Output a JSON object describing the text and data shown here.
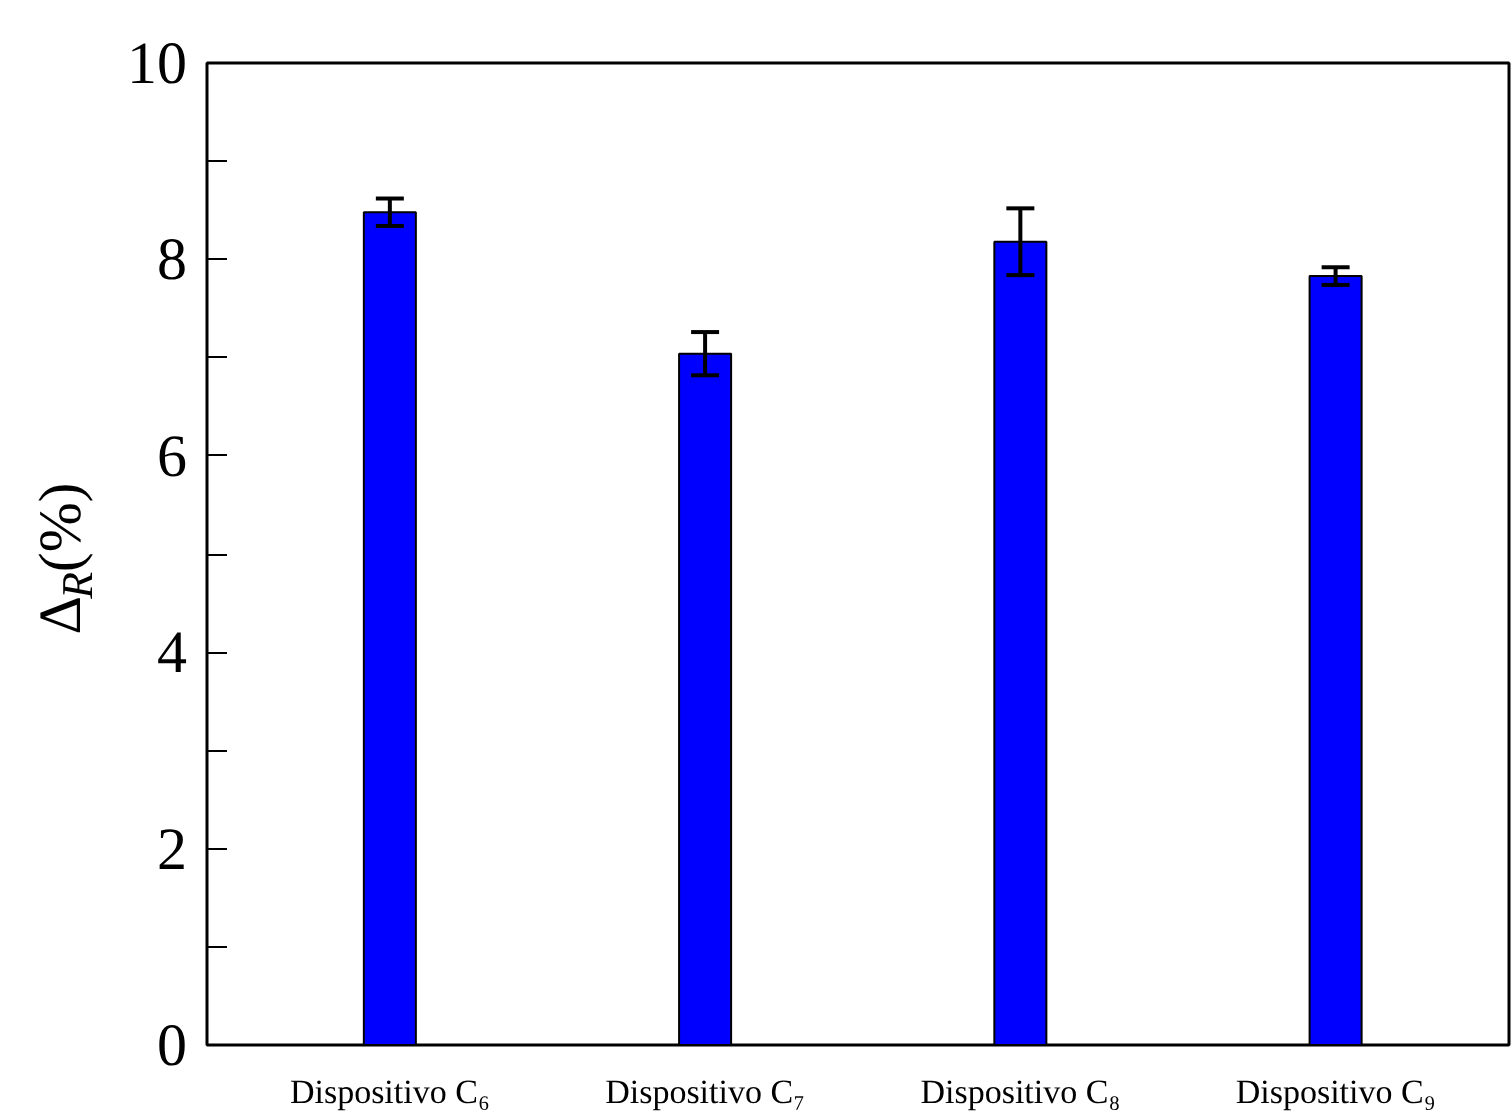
{
  "chart_data": {
    "type": "bar",
    "ylabel": "Δ$_{R}$(%)",
    "categories": [
      "Dispositivo C₆",
      "Dispositivo C₇",
      "Dispositivo C₈",
      "Dispositivo C₉"
    ],
    "values": [
      8.48,
      7.04,
      8.18,
      7.83
    ],
    "errors": [
      0.14,
      0.22,
      0.34,
      0.09
    ],
    "color": "#0000ff",
    "ylim": [
      0,
      10
    ],
    "yticks": [
      0,
      {
        "value": 1,
        "label": null
      },
      2,
      {
        "value": 3,
        "label": null
      },
      4,
      {
        "value": 5,
        "label": null
      },
      6,
      {
        "value": 7,
        "label": null
      },
      8,
      {
        "value": 9,
        "label": null
      },
      10
    ],
    "grid": false
  }
}
